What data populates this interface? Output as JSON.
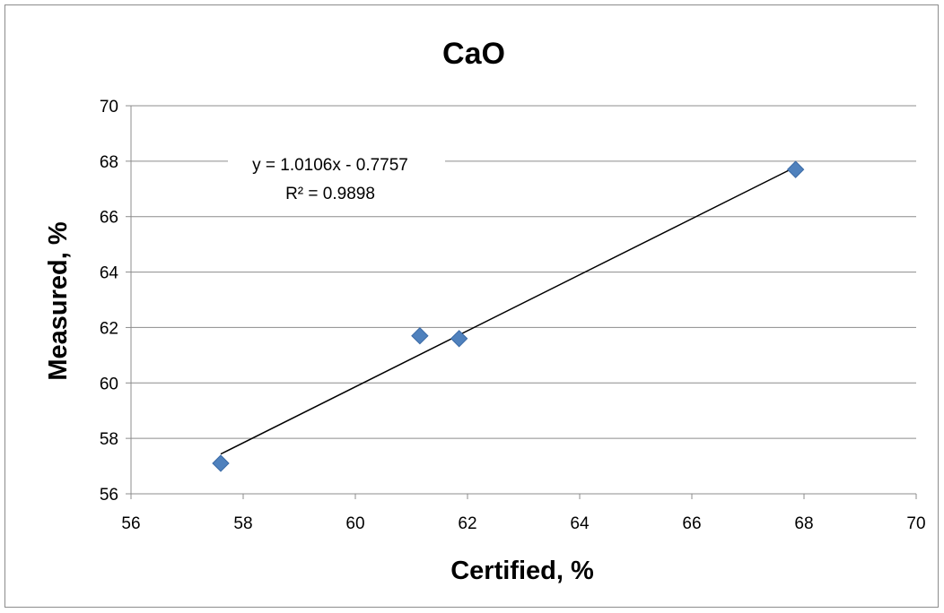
{
  "chart_data": {
    "type": "scatter",
    "title": "CaO",
    "xlabel": "Certified, %",
    "ylabel": "Measured, %",
    "xlim": [
      56,
      70
    ],
    "ylim": [
      56,
      70
    ],
    "xticks": [
      56,
      58,
      60,
      62,
      64,
      66,
      68,
      70
    ],
    "yticks": [
      56,
      58,
      60,
      62,
      64,
      66,
      68,
      70
    ],
    "grid": "horizontal",
    "legend": "none",
    "marker": "diamond",
    "marker_color": "#4f81bd",
    "series": [
      {
        "x": [
          57.6,
          61.15,
          61.85,
          67.85
        ],
        "y": [
          57.1,
          61.7,
          61.6,
          67.7
        ]
      }
    ],
    "trendline": {
      "type": "linear",
      "slope": 1.0106,
      "intercept": -0.7757,
      "x_range": [
        57.6,
        67.85
      ],
      "equation": "y = 1.0106x - 0.7757",
      "r_squared": "R² = 0.9898"
    }
  }
}
